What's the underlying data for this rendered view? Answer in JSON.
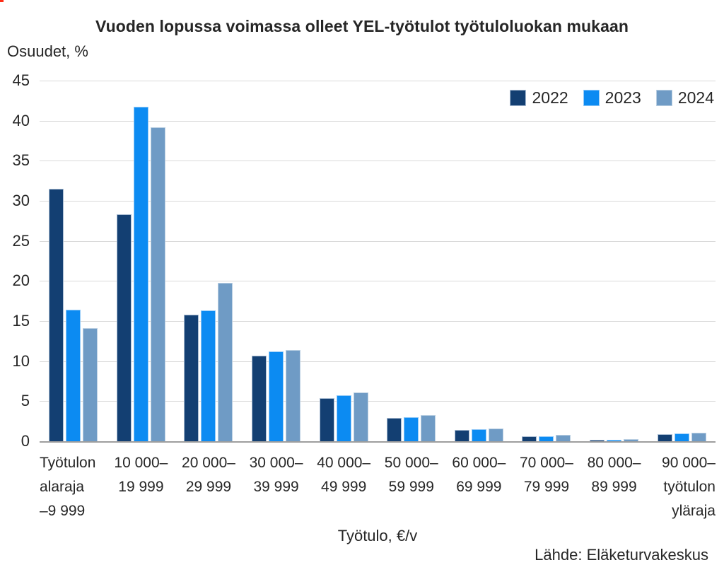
{
  "title": "Vuoden lopussa voimassa olleet YEL-työtulot työtuloluokan mukaan",
  "y_axis_title": "Osuudet, %",
  "x_axis_title": "Työtulo, €/v",
  "source": "Lähde: Eläketurvakeskus",
  "artifact_color": "#FF2D16",
  "colors": {
    "grid": "#d9d9d9",
    "axis": "#9e9e9e",
    "text": "#262626",
    "series_2022": "#133F72",
    "series_2023": "#0C8BF2",
    "series_2024": "#6F9BC5"
  },
  "chart_data": {
    "type": "bar",
    "title": "Vuoden lopussa voimassa olleet YEL-työtulot työtuloluokan mukaan",
    "ylabel": "Osuudet, %",
    "xlabel": "Työtulo, €/v",
    "ylim": [
      0,
      45
    ],
    "yticks": [
      0,
      5,
      10,
      15,
      20,
      25,
      30,
      35,
      40,
      45
    ],
    "grid": true,
    "legend_position": "top-right",
    "categories": [
      [
        "Työtulon",
        "alaraja",
        "–9 999"
      ],
      [
        "10 000–",
        "19 999"
      ],
      [
        "20 000–",
        "29 999"
      ],
      [
        "30 000–",
        "39 999"
      ],
      [
        "40 000–",
        "49 999"
      ],
      [
        "50 000–",
        "59 999"
      ],
      [
        "60 000–",
        "69 999"
      ],
      [
        "70 000–",
        "79 999"
      ],
      [
        "80 000–",
        "89 999"
      ],
      [
        "90 000–",
        "työtulon",
        "yläraja"
      ]
    ],
    "series": [
      {
        "name": "2022",
        "color": "#133F72",
        "border_color": "#aabdd3",
        "values": [
          31.5,
          28.3,
          15.8,
          10.7,
          5.4,
          2.9,
          1.4,
          0.6,
          0.2,
          0.9
        ]
      },
      {
        "name": "2023",
        "color": "#0C8BF2",
        "border_color": "#90c8f7",
        "values": [
          16.4,
          41.7,
          16.3,
          11.2,
          5.7,
          3.0,
          1.5,
          0.6,
          0.2,
          1.0
        ]
      },
      {
        "name": "2024",
        "color": "#6F9BC5",
        "border_color": "#bacfe2",
        "values": [
          14.1,
          39.2,
          19.8,
          11.4,
          6.1,
          3.3,
          1.6,
          0.8,
          0.3,
          1.1
        ]
      }
    ]
  }
}
